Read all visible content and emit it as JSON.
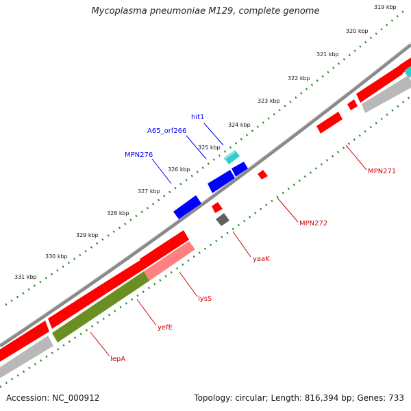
{
  "title": "Mycoplasma pneumoniae M129, complete genome",
  "footer": {
    "accession": "Accession: NC_000912",
    "summary": "Topology: circular; Length: 816,394 bp; Genes: 733"
  },
  "colors": {
    "backbone": "#808080",
    "gene_forward": "#ff0000",
    "gene_reverse_light": "#ff8080",
    "gene_blue": "#0000ff",
    "gene_cyan": "#33cccc",
    "gene_green": "#6b8e23",
    "gene_grey": "#b0b0b0",
    "gene_dark": "#606060",
    "ruler": "#2e8b2e",
    "label_blue": "#0000ff",
    "label_red": "#cc0000"
  },
  "ruler_labels": [
    "319 kbp",
    "320 kbp",
    "321 kbp",
    "322 kbp",
    "323 kbp",
    "324 kbp",
    "325 kbp",
    "326 kbp",
    "327 kbp",
    "328 kbp",
    "329 kbp",
    "330 kbp",
    "331 kbp"
  ],
  "gene_labels": [
    {
      "text": "hit1",
      "color": "blue"
    },
    {
      "text": "A65_orf266",
      "color": "blue"
    },
    {
      "text": "MPN276",
      "color": "blue"
    },
    {
      "text": "MPN271",
      "color": "red"
    },
    {
      "text": "MPN272",
      "color": "red"
    },
    {
      "text": "yaaK",
      "color": "red"
    },
    {
      "text": "lysS",
      "color": "red"
    },
    {
      "text": "yefE",
      "color": "red"
    },
    {
      "text": "lepA",
      "color": "red"
    }
  ]
}
